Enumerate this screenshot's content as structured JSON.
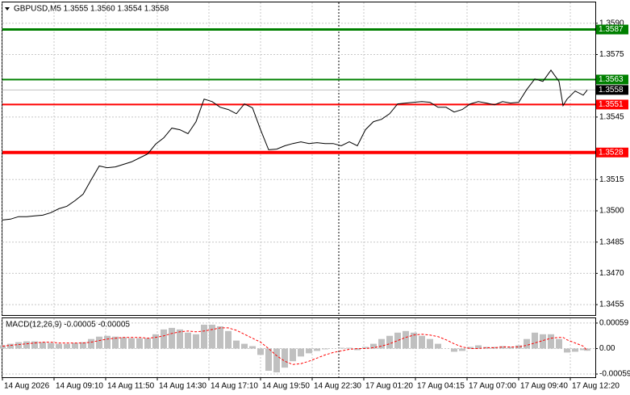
{
  "chart_data": [
    {
      "type": "line",
      "title": "GBPUSD,M5  1.3555 1.3560 1.3554 1.3558",
      "x": [
        0,
        5,
        10,
        15,
        20,
        25,
        30,
        35,
        40,
        45,
        50,
        55,
        60,
        65,
        70,
        75,
        80,
        85,
        90,
        95,
        100,
        105,
        110,
        115,
        120,
        125,
        130,
        135,
        140,
        145,
        150,
        155,
        160,
        165,
        170,
        175,
        180,
        185,
        190,
        195,
        200,
        205,
        210,
        215,
        220,
        225,
        230,
        235,
        240,
        245,
        250,
        255,
        260,
        265,
        270,
        275,
        280,
        285,
        290,
        295,
        300,
        305,
        310,
        315,
        320,
        325,
        330,
        335,
        340,
        345,
        347.5,
        350,
        355,
        360,
        362.5
      ],
      "series": [
        {
          "color": "#000000",
          "values": [
            1.34956,
            1.3496,
            1.34972,
            1.34972,
            1.34976,
            1.34979,
            1.34991,
            1.3501,
            1.35022,
            1.35049,
            1.3508,
            1.35149,
            1.35215,
            1.35207,
            1.35211,
            1.35223,
            1.35235,
            1.35254,
            1.35273,
            1.3532,
            1.3535,
            1.35397,
            1.35389,
            1.3537,
            1.35428,
            1.35536,
            1.35524,
            1.35497,
            1.35486,
            1.35466,
            1.35513,
            1.35494,
            1.35389,
            1.35293,
            1.35296,
            1.35312,
            1.35323,
            1.35331,
            1.35323,
            1.35327,
            1.35323,
            1.35323,
            1.35312,
            1.35331,
            1.35312,
            1.35389,
            1.35428,
            1.35439,
            1.35466,
            1.35513,
            1.35517,
            1.35521,
            1.35524,
            1.35521,
            1.35497,
            1.35497,
            1.35474,
            1.35486,
            1.35513,
            1.35524,
            1.35517,
            1.35509,
            1.35524,
            1.35517,
            1.35521,
            1.35582,
            1.35633,
            1.35621,
            1.35675,
            1.35621,
            1.35505,
            1.35536,
            1.35575,
            1.35555,
            1.3558
          ]
        }
      ],
      "xlim": [
        0,
        367.5
      ],
      "ylim": [
        1.345,
        1.36
      ],
      "yticks": [
        1.3455,
        {
          "value": 1.347,
          "label": "1.3470"
        },
        1.3485,
        {
          "value": 1.35,
          "label": "1.3500"
        },
        1.3515,
        1.3545,
        1.3575,
        {
          "value": 1.359,
          "label": "1.3590"
        }
      ],
      "levels": [
        {
          "value": 1.3587,
          "color": "#008000",
          "width": 3
        },
        {
          "value": 1.3563,
          "color": "#008000",
          "width": 2
        },
        {
          "value": 1.3551,
          "color": "#ff0000",
          "width": 2
        },
        {
          "value": 1.3528,
          "color": "#ff0000",
          "width": 4
        }
      ],
      "last_price": 1.3558,
      "grid": true
    },
    {
      "type": "macd",
      "title": "MACD(12,26,9) -0.00005 -0.00005",
      "x": [
        0,
        5,
        10,
        15,
        20,
        25,
        30,
        35,
        40,
        45,
        50,
        55,
        60,
        65,
        70,
        75,
        80,
        85,
        90,
        95,
        100,
        105,
        110,
        115,
        120,
        125,
        130,
        135,
        140,
        145,
        150,
        155,
        160,
        165,
        170,
        175,
        180,
        185,
        190,
        195,
        200,
        205,
        210,
        215,
        220,
        225,
        230,
        235,
        240,
        245,
        250,
        255,
        260,
        265,
        270,
        275,
        280,
        285,
        290,
        295,
        300,
        305,
        310,
        315,
        320,
        325,
        330,
        335,
        340,
        345,
        347.5,
        350,
        355,
        360,
        362.5
      ],
      "xlim": [
        0,
        367.5
      ],
      "ylim": [
        -0.000664,
        0.000701
      ],
      "yticks": [
        0.00059,
        {
          "value": 0,
          "label": "0.00"
        },
        -0.00059
      ],
      "xticks": [
        {
          "value": 0,
          "label": "14 Aug 2026"
        },
        {
          "value": 32,
          "label": "14 Aug 09:10"
        },
        {
          "value": 64,
          "label": "14 Aug 11:50"
        },
        {
          "value": 96,
          "label": "14 Aug 14:30"
        },
        {
          "value": 128,
          "label": "14 Aug 17:10"
        },
        {
          "value": 160,
          "label": "14 Aug 19:50"
        },
        {
          "value": 192,
          "label": "14 Aug 22:30"
        },
        {
          "value": 224,
          "label": "17 Aug 01:20"
        },
        {
          "value": 256,
          "label": "17 Aug 04:15"
        },
        {
          "value": 288,
          "label": "17 Aug 07:00"
        },
        {
          "value": 320,
          "label": "17 Aug 09:40"
        },
        {
          "value": 352,
          "label": "17 Aug 12:20"
        }
      ],
      "series": [
        {
          "type": "bar",
          "color": "#c0c0c0",
          "values": [
            7.4e-05,
            0.00011,
            0.000147,
            0.000166,
            0.000166,
            0.000147,
            0.000129,
            0.00011,
            0.00011,
            0.000129,
            0.000147,
            0.000221,
            0.000276,
            0.000294,
            0.000276,
            0.000258,
            0.000239,
            0.000239,
            0.000239,
            0.000331,
            0.000442,
            0.000478,
            0.000442,
            0.000368,
            0.000331,
            0.000552,
            0.000552,
            0.000515,
            0.000405,
            0.000184,
            0.00011,
            5.5e-05,
            -0.000147,
            -0.000515,
            -0.000552,
            -0.000442,
            -0.000294,
            -0.000184,
            -0.00011,
            -5.5e-05,
            -1.8e-05,
            0,
            1.8e-05,
            1.8e-05,
            -3.7e-05,
            3.7e-05,
            0.00011,
            0.000221,
            0.000294,
            0.000368,
            0.000405,
            0.000368,
            0.000294,
            0.000221,
            0.00011,
            0,
            -7.4e-05,
            -5.5e-05,
            3.7e-05,
            7.4e-05,
            3.7e-05,
            3.7e-05,
            5.5e-05,
            3.7e-05,
            7.4e-05,
            0.000221,
            0.000368,
            0.000331,
            0.000331,
            0.000221,
            0,
            -9.2e-05,
            -7.4e-05,
            -3.7e-05,
            -5e-05
          ]
        },
        {
          "type": "line",
          "color": "#ff0000",
          "dash": true,
          "values": [
            5.5e-05,
            7.4e-05,
            9.2e-05,
            0.00011,
            0.000129,
            0.000147,
            0.000147,
            0.000129,
            0.000129,
            0.000129,
            0.000129,
            0.000147,
            0.000184,
            0.000221,
            0.000239,
            0.000258,
            0.000258,
            0.000258,
            0.000239,
            0.000258,
            0.000294,
            0.00035,
            0.000386,
            0.000405,
            0.000386,
            0.000405,
            0.000442,
            0.000478,
            0.000478,
            0.000423,
            0.000331,
            0.000239,
            0.000147,
            0,
            -0.000166,
            -0.000294,
            -0.000368,
            -0.00035,
            -0.000294,
            -0.000221,
            -0.000147,
            -9.2e-05,
            -5.5e-05,
            -1.8e-05,
            0,
            0,
            1.8e-05,
            5.5e-05,
            0.00011,
            0.000184,
            0.000258,
            0.000313,
            0.000331,
            0.000313,
            0.000276,
            0.000202,
            0.00011,
            3.7e-05,
            0,
            0,
            1.8e-05,
            1.8e-05,
            3.7e-05,
            3.7e-05,
            3.7e-05,
            7.4e-05,
            0.000129,
            0.000184,
            0.000239,
            0.000258,
            0.000258,
            0.000202,
            0.000129,
            5.5e-05,
            -5e-05
          ]
        }
      ],
      "grid": true
    }
  ]
}
